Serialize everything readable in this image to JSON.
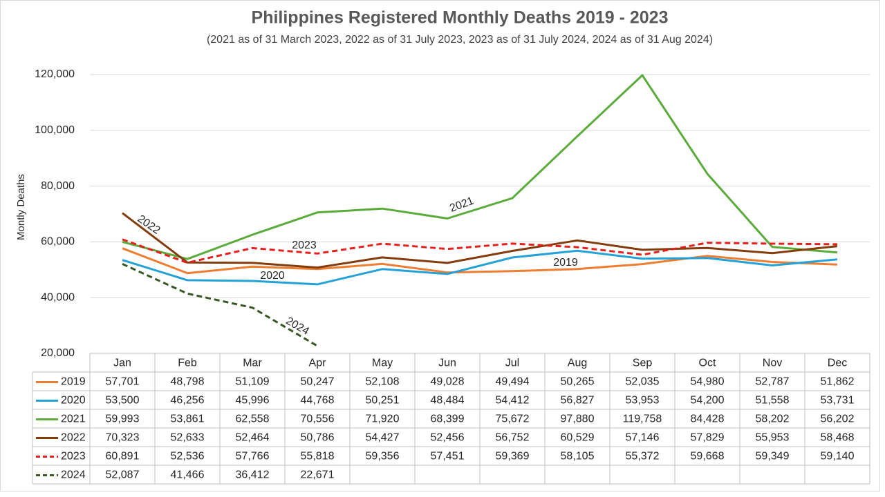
{
  "chart_data": {
    "type": "line",
    "title": "Philippines Registered Monthly Deaths 2019 - 2023",
    "subtitle": "(2021 as of 31 March 2023, 2022 as of 31 July 2023, 2023 as of 31 July 2024, 2024 as of 31 Aug 2024)",
    "y_label": "Montly Deaths",
    "categories": [
      "Jan",
      "Feb",
      "Mar",
      "Apr",
      "May",
      "Jun",
      "Jul",
      "Aug",
      "Sep",
      "Oct",
      "Nov",
      "Dec"
    ],
    "ylim": [
      20000,
      120000
    ],
    "yticks": [
      {
        "value": 20000,
        "label": "20,000"
      },
      {
        "value": 40000,
        "label": "40,000"
      },
      {
        "value": 60000,
        "label": "60,000"
      },
      {
        "value": 80000,
        "label": "80,000"
      },
      {
        "value": 100000,
        "label": "100,000"
      },
      {
        "value": 120000,
        "label": "120,000"
      }
    ],
    "grid": true,
    "data_table": true,
    "annotations": [
      "2022",
      "2023",
      "2020",
      "2021",
      "2019",
      "2024"
    ],
    "series": [
      {
        "name": "2019",
        "color": "#ed7d31",
        "line_style": "solid",
        "values": [
          57701,
          48798,
          51109,
          50247,
          52108,
          49028,
          49494,
          50265,
          52035,
          54980,
          52787,
          51862
        ],
        "value_labels": [
          "57,701",
          "48,798",
          "51,109",
          "50,247",
          "52,108",
          "49,028",
          "49,494",
          "50,265",
          "52,035",
          "54,980",
          "52,787",
          "51,862"
        ]
      },
      {
        "name": "2020",
        "color": "#24a1d6",
        "line_style": "solid",
        "values": [
          53500,
          46256,
          45996,
          44768,
          50251,
          48484,
          54412,
          56827,
          53953,
          54200,
          51558,
          53731
        ],
        "value_labels": [
          "53,500",
          "46,256",
          "45,996",
          "44,768",
          "50,251",
          "48,484",
          "54,412",
          "56,827",
          "53,953",
          "54,200",
          "51,558",
          "53,731"
        ]
      },
      {
        "name": "2021",
        "color": "#5aab3a",
        "line_style": "solid",
        "values": [
          59993,
          53861,
          62558,
          70556,
          71920,
          68399,
          75672,
          97880,
          119758,
          84428,
          58202,
          56202
        ],
        "value_labels": [
          "59,993",
          "53,861",
          "62,558",
          "70,556",
          "71,920",
          "68,399",
          "75,672",
          "97,880",
          "119,758",
          "84,428",
          "58,202",
          "56,202"
        ]
      },
      {
        "name": "2022",
        "color": "#843c0c",
        "line_style": "solid",
        "values": [
          70323,
          52633,
          52464,
          50786,
          54427,
          52456,
          56752,
          60529,
          57146,
          57829,
          55953,
          58468
        ],
        "value_labels": [
          "70,323",
          "52,633",
          "52,464",
          "50,786",
          "54,427",
          "52,456",
          "56,752",
          "60,529",
          "57,146",
          "57,829",
          "55,953",
          "58,468"
        ]
      },
      {
        "name": "2023",
        "color": "#e3201b",
        "line_style": "dashed",
        "values": [
          60891,
          52536,
          57766,
          55818,
          59356,
          57451,
          59369,
          58105,
          55372,
          59668,
          59349,
          59140
        ],
        "value_labels": [
          "60,891",
          "52,536",
          "57,766",
          "55,818",
          "59,356",
          "57,451",
          "59,369",
          "58,105",
          "55,372",
          "59,668",
          "59,349",
          "59,140"
        ]
      },
      {
        "name": "2024",
        "color": "#375623",
        "line_style": "dashed",
        "values": [
          52087,
          41466,
          36412,
          22671,
          null,
          null,
          null,
          null,
          null,
          null,
          null,
          null
        ],
        "value_labels": [
          "52,087",
          "41,466",
          "36,412",
          "22,671",
          null,
          null,
          null,
          null,
          null,
          null,
          null,
          null
        ]
      }
    ]
  }
}
